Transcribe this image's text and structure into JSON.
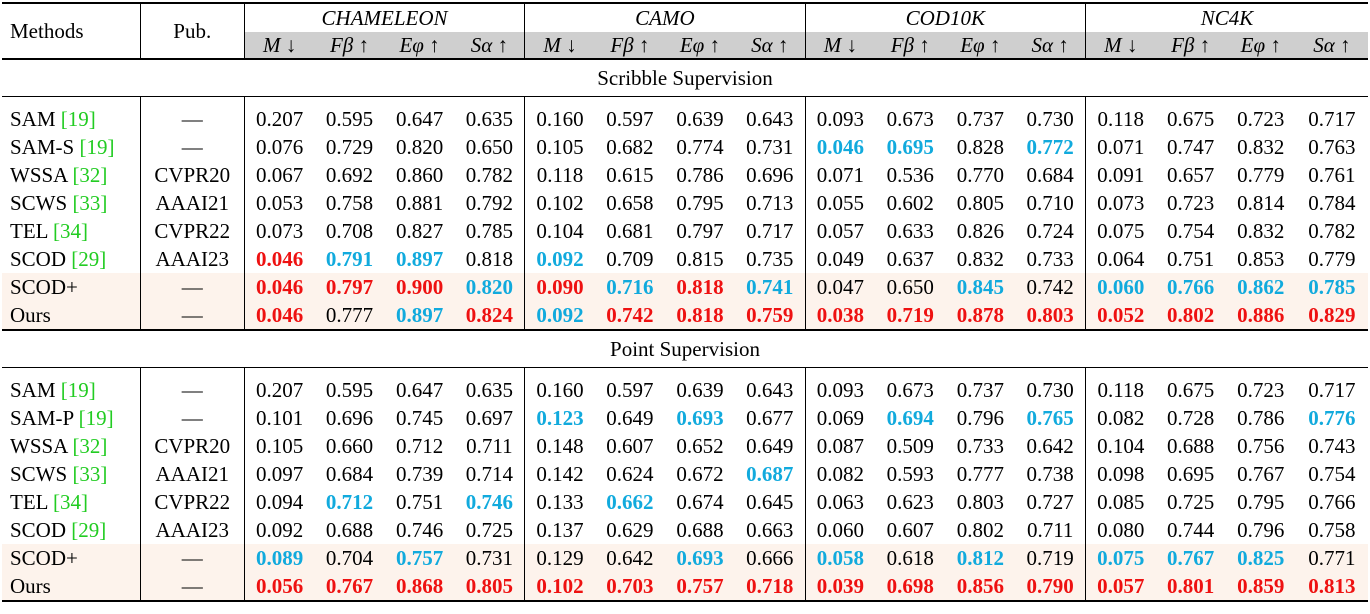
{
  "header": {
    "methods_label": "Methods",
    "pub_label": "Pub.",
    "datasets": [
      "CHAMELEON",
      "CAMO",
      "COD10K",
      "NC4K"
    ],
    "metrics": [
      "M ↓",
      "Fβ ↑",
      "Eφ ↑",
      "Sα ↑"
    ]
  },
  "sections": [
    {
      "title": "Scribble Supervision",
      "rows": [
        {
          "name": "SAM",
          "ref": "[19]",
          "pub": "—",
          "values": [
            "0.207",
            "0.595",
            "0.647",
            "0.635",
            "0.160",
            "0.597",
            "0.639",
            "0.643",
            "0.093",
            "0.673",
            "0.737",
            "0.730",
            "0.118",
            "0.675",
            "0.723",
            "0.717"
          ],
          "styles": [
            "",
            "",
            "",
            "",
            "",
            "",
            "",
            "",
            "",
            "",
            "",
            "",
            "",
            "",
            "",
            ""
          ],
          "highlight": false
        },
        {
          "name": "SAM-S",
          "ref": "[19]",
          "pub": "—",
          "values": [
            "0.076",
            "0.729",
            "0.820",
            "0.650",
            "0.105",
            "0.682",
            "0.774",
            "0.731",
            "0.046",
            "0.695",
            "0.828",
            "0.772",
            "0.071",
            "0.747",
            "0.832",
            "0.763"
          ],
          "styles": [
            "",
            "",
            "",
            "",
            "",
            "",
            "",
            "",
            "second",
            "second",
            "",
            "second",
            "",
            "",
            "",
            ""
          ],
          "highlight": false
        },
        {
          "name": "WSSA",
          "ref": "[32]",
          "pub": "CVPR20",
          "values": [
            "0.067",
            "0.692",
            "0.860",
            "0.782",
            "0.118",
            "0.615",
            "0.786",
            "0.696",
            "0.071",
            "0.536",
            "0.770",
            "0.684",
            "0.091",
            "0.657",
            "0.779",
            "0.761"
          ],
          "styles": [
            "",
            "",
            "",
            "",
            "",
            "",
            "",
            "",
            "",
            "",
            "",
            "",
            "",
            "",
            "",
            ""
          ],
          "highlight": false
        },
        {
          "name": "SCWS",
          "ref": "[33]",
          "pub": "AAAI21",
          "values": [
            "0.053",
            "0.758",
            "0.881",
            "0.792",
            "0.102",
            "0.658",
            "0.795",
            "0.713",
            "0.055",
            "0.602",
            "0.805",
            "0.710",
            "0.073",
            "0.723",
            "0.814",
            "0.784"
          ],
          "styles": [
            "",
            "",
            "",
            "",
            "",
            "",
            "",
            "",
            "",
            "",
            "",
            "",
            "",
            "",
            "",
            ""
          ],
          "highlight": false
        },
        {
          "name": "TEL",
          "ref": "[34]",
          "pub": "CVPR22",
          "values": [
            "0.073",
            "0.708",
            "0.827",
            "0.785",
            "0.104",
            "0.681",
            "0.797",
            "0.717",
            "0.057",
            "0.633",
            "0.826",
            "0.724",
            "0.075",
            "0.754",
            "0.832",
            "0.782"
          ],
          "styles": [
            "",
            "",
            "",
            "",
            "",
            "",
            "",
            "",
            "",
            "",
            "",
            "",
            "",
            "",
            "",
            ""
          ],
          "highlight": false
        },
        {
          "name": "SCOD",
          "ref": "[29]",
          "pub": "AAAI23",
          "values": [
            "0.046",
            "0.791",
            "0.897",
            "0.818",
            "0.092",
            "0.709",
            "0.815",
            "0.735",
            "0.049",
            "0.637",
            "0.832",
            "0.733",
            "0.064",
            "0.751",
            "0.853",
            "0.779"
          ],
          "styles": [
            "best",
            "second",
            "second",
            "",
            "second",
            "",
            "",
            "",
            "",
            "",
            "",
            "",
            "",
            "",
            "",
            ""
          ],
          "highlight": false
        },
        {
          "name": "SCOD+",
          "ref": "",
          "pub": "—",
          "values": [
            "0.046",
            "0.797",
            "0.900",
            "0.820",
            "0.090",
            "0.716",
            "0.818",
            "0.741",
            "0.047",
            "0.650",
            "0.845",
            "0.742",
            "0.060",
            "0.766",
            "0.862",
            "0.785"
          ],
          "styles": [
            "best",
            "best",
            "best",
            "second",
            "best",
            "second",
            "best",
            "second",
            "",
            "",
            "second",
            "",
            "second",
            "second",
            "second",
            "second"
          ],
          "highlight": true
        },
        {
          "name": "Ours",
          "ref": "",
          "pub": "—",
          "values": [
            "0.046",
            "0.777",
            "0.897",
            "0.824",
            "0.092",
            "0.742",
            "0.818",
            "0.759",
            "0.038",
            "0.719",
            "0.878",
            "0.803",
            "0.052",
            "0.802",
            "0.886",
            "0.829"
          ],
          "styles": [
            "best",
            "",
            "second",
            "best",
            "second",
            "best",
            "best",
            "best",
            "best",
            "best",
            "best",
            "best",
            "best",
            "best",
            "best",
            "best"
          ],
          "highlight": true
        }
      ]
    },
    {
      "title": "Point Supervision",
      "rows": [
        {
          "name": "SAM",
          "ref": "[19]",
          "pub": "—",
          "values": [
            "0.207",
            "0.595",
            "0.647",
            "0.635",
            "0.160",
            "0.597",
            "0.639",
            "0.643",
            "0.093",
            "0.673",
            "0.737",
            "0.730",
            "0.118",
            "0.675",
            "0.723",
            "0.717"
          ],
          "styles": [
            "",
            "",
            "",
            "",
            "",
            "",
            "",
            "",
            "",
            "",
            "",
            "",
            "",
            "",
            "",
            ""
          ],
          "highlight": false
        },
        {
          "name": "SAM-P",
          "ref": "[19]",
          "pub": "—",
          "values": [
            "0.101",
            "0.696",
            "0.745",
            "0.697",
            "0.123",
            "0.649",
            "0.693",
            "0.677",
            "0.069",
            "0.694",
            "0.796",
            "0.765",
            "0.082",
            "0.728",
            "0.786",
            "0.776"
          ],
          "styles": [
            "",
            "",
            "",
            "",
            "second",
            "",
            "second",
            "",
            "",
            "second",
            "",
            "second",
            "",
            "",
            "",
            "second"
          ],
          "highlight": false
        },
        {
          "name": "WSSA",
          "ref": "[32]",
          "pub": "CVPR20",
          "values": [
            "0.105",
            "0.660",
            "0.712",
            "0.711",
            "0.148",
            "0.607",
            "0.652",
            "0.649",
            "0.087",
            "0.509",
            "0.733",
            "0.642",
            "0.104",
            "0.688",
            "0.756",
            "0.743"
          ],
          "styles": [
            "",
            "",
            "",
            "",
            "",
            "",
            "",
            "",
            "",
            "",
            "",
            "",
            "",
            "",
            "",
            ""
          ],
          "highlight": false
        },
        {
          "name": "SCWS",
          "ref": "[33]",
          "pub": "AAAI21",
          "values": [
            "0.097",
            "0.684",
            "0.739",
            "0.714",
            "0.142",
            "0.624",
            "0.672",
            "0.687",
            "0.082",
            "0.593",
            "0.777",
            "0.738",
            "0.098",
            "0.695",
            "0.767",
            "0.754"
          ],
          "styles": [
            "",
            "",
            "",
            "",
            "",
            "",
            "",
            "second",
            "",
            "",
            "",
            "",
            "",
            "",
            "",
            ""
          ],
          "highlight": false
        },
        {
          "name": "TEL",
          "ref": "[34]",
          "pub": "CVPR22",
          "values": [
            "0.094",
            "0.712",
            "0.751",
            "0.746",
            "0.133",
            "0.662",
            "0.674",
            "0.645",
            "0.063",
            "0.623",
            "0.803",
            "0.727",
            "0.085",
            "0.725",
            "0.795",
            "0.766"
          ],
          "styles": [
            "",
            "second",
            "",
            "second",
            "",
            "second",
            "",
            "",
            "",
            "",
            "",
            "",
            "",
            "",
            "",
            ""
          ],
          "highlight": false
        },
        {
          "name": "SCOD",
          "ref": "[29]",
          "pub": "AAAI23",
          "values": [
            "0.092",
            "0.688",
            "0.746",
            "0.725",
            "0.137",
            "0.629",
            "0.688",
            "0.663",
            "0.060",
            "0.607",
            "0.802",
            "0.711",
            "0.080",
            "0.744",
            "0.796",
            "0.758"
          ],
          "styles": [
            "",
            "",
            "",
            "",
            "",
            "",
            "",
            "",
            "",
            "",
            "",
            "",
            "",
            "",
            "",
            ""
          ],
          "highlight": false
        },
        {
          "name": "SCOD+",
          "ref": "",
          "pub": "—",
          "values": [
            "0.089",
            "0.704",
            "0.757",
            "0.731",
            "0.129",
            "0.642",
            "0.693",
            "0.666",
            "0.058",
            "0.618",
            "0.812",
            "0.719",
            "0.075",
            "0.767",
            "0.825",
            "0.771"
          ],
          "styles": [
            "second",
            "",
            "second",
            "",
            "",
            "",
            "second",
            "",
            "second",
            "",
            "second",
            "",
            "second",
            "second",
            "second",
            ""
          ],
          "highlight": true
        },
        {
          "name": "Ours",
          "ref": "",
          "pub": "—",
          "values": [
            "0.056",
            "0.767",
            "0.868",
            "0.805",
            "0.102",
            "0.703",
            "0.757",
            "0.718",
            "0.039",
            "0.698",
            "0.856",
            "0.790",
            "0.057",
            "0.801",
            "0.859",
            "0.813"
          ],
          "styles": [
            "best",
            "best",
            "best",
            "best",
            "best",
            "best",
            "best",
            "best",
            "best",
            "best",
            "best",
            "best",
            "best",
            "best",
            "best",
            "best"
          ],
          "highlight": true
        }
      ]
    }
  ]
}
